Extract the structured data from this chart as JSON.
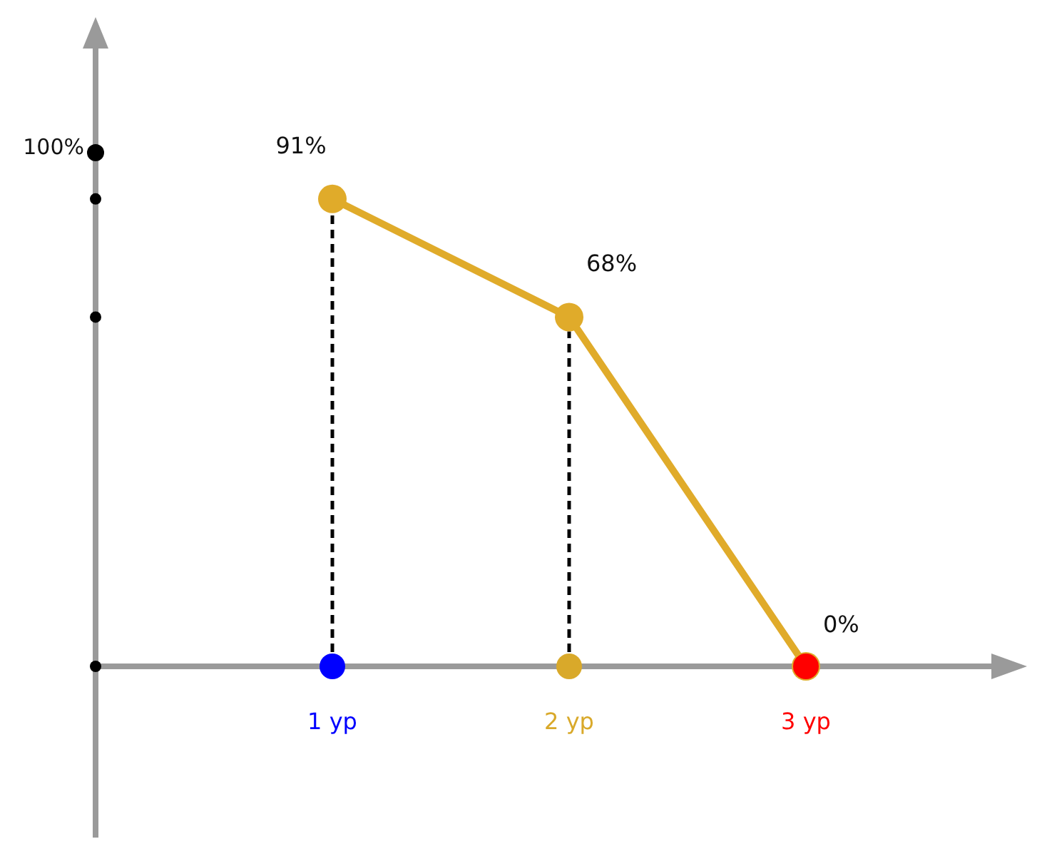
{
  "chart_data": {
    "type": "line",
    "categories": [
      "1 ур",
      "2 ур",
      "3 ур"
    ],
    "colors": [
      "#0000ff",
      "#d9a92a",
      "#ff0000"
    ],
    "series": [
      {
        "color": "#e0ab2a",
        "values": [
          91,
          68,
          0
        ],
        "value_labels": [
          "91%",
          "68%",
          "0%"
        ]
      }
    ],
    "annotations": [
      "100%"
    ],
    "ref_lines": [
      {
        "axis": "x",
        "value": "1 ур",
        "line_style": "dashed",
        "color": "#000000"
      },
      {
        "axis": "x",
        "value": "2 ур",
        "line_style": "dashed",
        "color": "#000000"
      }
    ],
    "marker": "circle"
  }
}
